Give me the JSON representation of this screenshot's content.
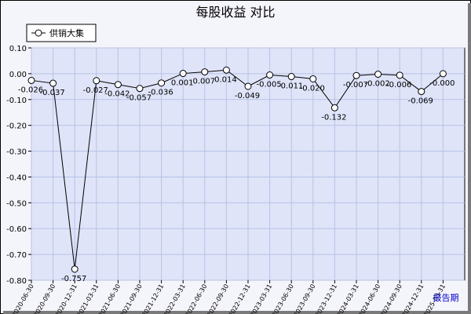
{
  "chart_data": {
    "type": "line",
    "title": "每股收益  对比",
    "xlabel": "报告期",
    "ylabel": "",
    "ylim": [
      -0.8,
      0.1
    ],
    "yticks": [
      "0.10",
      "0.00",
      "-0.10",
      "-0.20",
      "-0.30",
      "-0.40",
      "-0.50",
      "-0.60",
      "-0.70",
      "-0.80"
    ],
    "ytick_values": [
      0.1,
      0.0,
      -0.1,
      -0.2,
      -0.3,
      -0.4,
      -0.5,
      -0.6,
      -0.7,
      -0.8
    ],
    "grid": true,
    "legend_position": "top-left",
    "categories": [
      "2020-06-30",
      "2020-09-30",
      "2020-12-31",
      "2021-03-31",
      "2021-06-30",
      "2021-09-30",
      "2021-12-31",
      "2022-03-31",
      "2022-06-30",
      "2022-09-30",
      "2022-12-31",
      "2023-03-31",
      "2023-06-30",
      "2023-09-30",
      "2023-12-31",
      "2024-03-31",
      "2024-06-30",
      "2024-09-30",
      "2024-12-31",
      "2025-03-31"
    ],
    "series": [
      {
        "name": "供销大集",
        "values": [
          -0.026,
          -0.037,
          -0.757,
          -0.027,
          -0.042,
          -0.057,
          -0.036,
          0.001,
          0.007,
          0.014,
          -0.049,
          -0.005,
          -0.011,
          -0.02,
          -0.132,
          -0.007,
          -0.002,
          -0.006,
          -0.069,
          -0.0
        ],
        "labels": [
          "-0.026",
          "-0.037",
          "-0.757",
          "-0.027",
          "-0.042",
          "-0.057",
          "-0.036",
          "0.001",
          "0.007",
          "0.014",
          "-0.049",
          "-0.005",
          "-0.011",
          "-0.020",
          "-0.132",
          "-0.007",
          "-0.002",
          "-0.006",
          "-0.069",
          "-0.000"
        ]
      }
    ],
    "colors": {
      "plot_background": "#dfe4f8",
      "grid": "#b8c2e6",
      "line": "#000000",
      "marker_fill": "#ffffff",
      "xname": "#0000cc"
    }
  }
}
